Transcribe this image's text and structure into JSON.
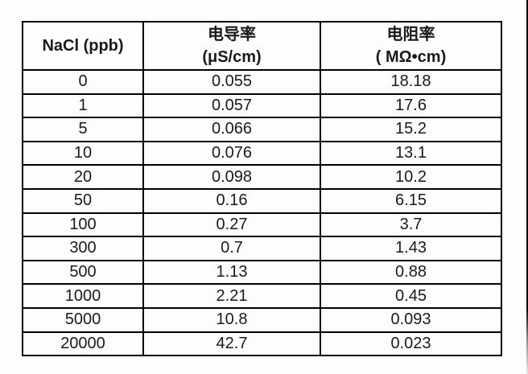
{
  "page": {
    "background": "#fdfdfd",
    "border_color": "#000000",
    "text_color": "#1a1a1a"
  },
  "table": {
    "header": [
      {
        "lines": [
          "NaCl (ppb)",
          ""
        ]
      },
      {
        "lines": [
          "电导率",
          "(μS/cm)"
        ]
      },
      {
        "lines": [
          "电阻率",
          "( MΩ•cm)"
        ]
      }
    ],
    "rows": [
      [
        "0",
        "0.055",
        "18.18"
      ],
      [
        "1",
        "0.057",
        "17.6"
      ],
      [
        "5",
        "0.066",
        "15.2"
      ],
      [
        "10",
        "0.076",
        "13.1"
      ],
      [
        "20",
        "0.098",
        "10.2"
      ],
      [
        "50",
        "0.16",
        "6.15"
      ],
      [
        "100",
        "0.27",
        "3.7"
      ],
      [
        "300",
        "0.7",
        "1.43"
      ],
      [
        "500",
        "1.13",
        "0.88"
      ],
      [
        "1000",
        "2.21",
        "0.45"
      ],
      [
        "5000",
        "10.8",
        "0.093"
      ],
      [
        "20000",
        "42.7",
        "0.023"
      ]
    ]
  },
  "chart_data": {
    "type": "table",
    "columns": [
      "NaCl (ppb)",
      "电导率 (μS/cm)",
      "电阻率 ( MΩ•cm)"
    ],
    "rows": [
      [
        0,
        0.055,
        18.18
      ],
      [
        1,
        0.057,
        17.6
      ],
      [
        5,
        0.066,
        15.2
      ],
      [
        10,
        0.076,
        13.1
      ],
      [
        20,
        0.098,
        10.2
      ],
      [
        50,
        0.16,
        6.15
      ],
      [
        100,
        0.27,
        3.7
      ],
      [
        300,
        0.7,
        1.43
      ],
      [
        500,
        1.13,
        0.88
      ],
      [
        1000,
        2.21,
        0.45
      ],
      [
        5000,
        10.8,
        0.093
      ],
      [
        20000,
        42.7,
        0.023
      ]
    ]
  }
}
